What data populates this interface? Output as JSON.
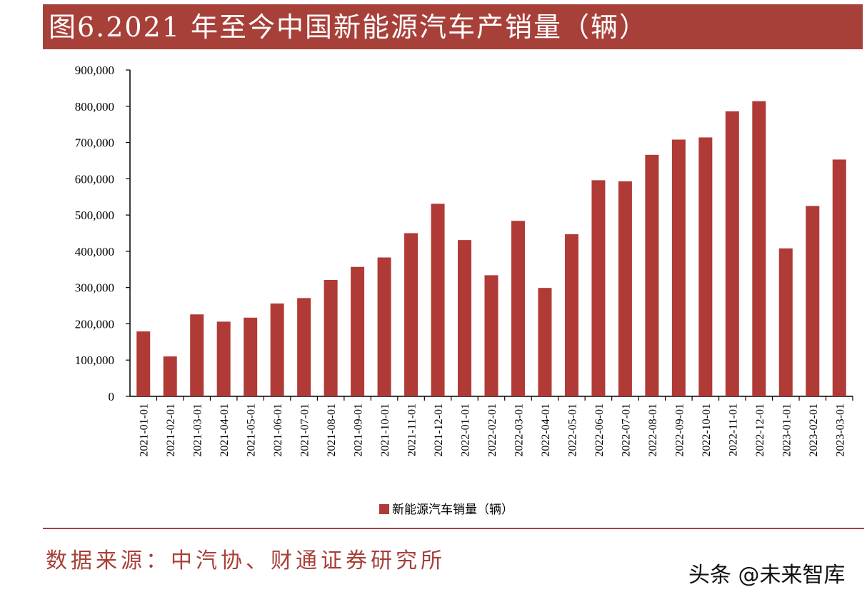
{
  "page": {
    "title": "图6.2021 年至今中国新能源汽车产销量（辆）",
    "source": "数据来源：中汽协、财通证券研究所",
    "watermark": "头条 @未来智库"
  },
  "colors": {
    "accent": "#a8403a",
    "bar": "#b03a36",
    "axis": "#000000",
    "text": "#000000"
  },
  "chart_data": {
    "type": "bar",
    "title": "",
    "xlabel": "",
    "ylabel": "",
    "ylim": [
      0,
      900000
    ],
    "y_ticks": [
      0,
      100000,
      200000,
      300000,
      400000,
      500000,
      600000,
      700000,
      800000,
      900000
    ],
    "y_tick_labels": [
      "0",
      "100,000",
      "200,000",
      "300,000",
      "400,000",
      "500,000",
      "600,000",
      "700,000",
      "800,000",
      "900,000"
    ],
    "categories": [
      "2021-01-01",
      "2021-02-01",
      "2021-03-01",
      "2021-04-01",
      "2021-05-01",
      "2021-06-01",
      "2021-07-01",
      "2021-08-01",
      "2021-09-01",
      "2021-10-01",
      "2021-11-01",
      "2021-12-01",
      "2022-01-01",
      "2022-02-01",
      "2022-03-01",
      "2022-04-01",
      "2022-05-01",
      "2022-06-01",
      "2022-07-01",
      "2022-08-01",
      "2022-09-01",
      "2022-10-01",
      "2022-11-01",
      "2022-12-01",
      "2023-01-01",
      "2023-02-01",
      "2023-03-01"
    ],
    "series": [
      {
        "name": "新能源汽车销量（辆）",
        "values": [
          179000,
          110000,
          226000,
          206000,
          217000,
          256000,
          271000,
          321000,
          357000,
          383000,
          450000,
          531000,
          431000,
          334000,
          484000,
          299000,
          447000,
          596000,
          593000,
          666000,
          708000,
          714000,
          786000,
          814000,
          408000,
          525000,
          653000
        ]
      }
    ],
    "grid": false,
    "legend": "bottom-center"
  }
}
